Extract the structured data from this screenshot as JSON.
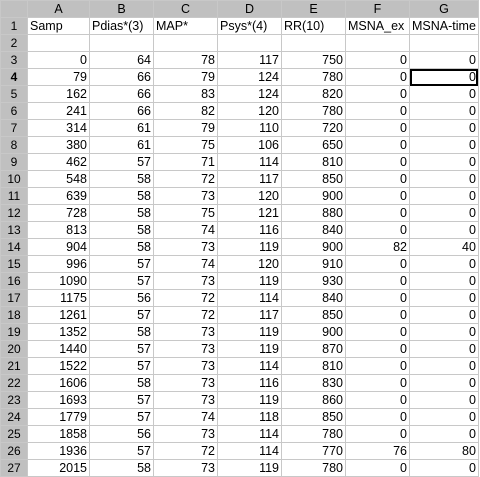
{
  "sheet": {
    "columns": [
      "A",
      "B",
      "C",
      "D",
      "E",
      "F",
      "G"
    ],
    "header_row": {
      "number": "1",
      "cells": [
        "Samp",
        "Pdias*(3)",
        "MAP*",
        "Psys*(4)",
        "RR(10)",
        "MSNA_ex",
        "MSNA-time"
      ]
    },
    "active_row": "4",
    "selected_cell": {
      "row": "4",
      "column": "G"
    },
    "rows": [
      {
        "n": "2",
        "cells": [
          "",
          "",
          "",
          "",
          "",
          "",
          ""
        ]
      },
      {
        "n": "3",
        "cells": [
          "0",
          "64",
          "78",
          "117",
          "750",
          "0",
          "0"
        ]
      },
      {
        "n": "4",
        "cells": [
          "79",
          "66",
          "79",
          "124",
          "780",
          "0",
          "0"
        ]
      },
      {
        "n": "5",
        "cells": [
          "162",
          "66",
          "83",
          "124",
          "820",
          "0",
          "0"
        ]
      },
      {
        "n": "6",
        "cells": [
          "241",
          "66",
          "82",
          "120",
          "780",
          "0",
          "0"
        ]
      },
      {
        "n": "7",
        "cells": [
          "314",
          "61",
          "79",
          "110",
          "720",
          "0",
          "0"
        ]
      },
      {
        "n": "8",
        "cells": [
          "380",
          "61",
          "75",
          "106",
          "650",
          "0",
          "0"
        ]
      },
      {
        "n": "9",
        "cells": [
          "462",
          "57",
          "71",
          "114",
          "810",
          "0",
          "0"
        ]
      },
      {
        "n": "10",
        "cells": [
          "548",
          "58",
          "72",
          "117",
          "850",
          "0",
          "0"
        ]
      },
      {
        "n": "11",
        "cells": [
          "639",
          "58",
          "73",
          "120",
          "900",
          "0",
          "0"
        ]
      },
      {
        "n": "12",
        "cells": [
          "728",
          "58",
          "75",
          "121",
          "880",
          "0",
          "0"
        ]
      },
      {
        "n": "13",
        "cells": [
          "813",
          "58",
          "74",
          "116",
          "840",
          "0",
          "0"
        ]
      },
      {
        "n": "14",
        "cells": [
          "904",
          "58",
          "73",
          "119",
          "900",
          "82",
          "40"
        ]
      },
      {
        "n": "15",
        "cells": [
          "996",
          "57",
          "74",
          "120",
          "910",
          "0",
          "0"
        ]
      },
      {
        "n": "16",
        "cells": [
          "1090",
          "57",
          "73",
          "119",
          "930",
          "0",
          "0"
        ]
      },
      {
        "n": "17",
        "cells": [
          "1175",
          "56",
          "72",
          "114",
          "840",
          "0",
          "0"
        ]
      },
      {
        "n": "18",
        "cells": [
          "1261",
          "57",
          "72",
          "117",
          "850",
          "0",
          "0"
        ]
      },
      {
        "n": "19",
        "cells": [
          "1352",
          "58",
          "73",
          "119",
          "900",
          "0",
          "0"
        ]
      },
      {
        "n": "20",
        "cells": [
          "1440",
          "57",
          "73",
          "119",
          "870",
          "0",
          "0"
        ]
      },
      {
        "n": "21",
        "cells": [
          "1522",
          "57",
          "73",
          "114",
          "810",
          "0",
          "0"
        ]
      },
      {
        "n": "22",
        "cells": [
          "1606",
          "58",
          "73",
          "116",
          "830",
          "0",
          "0"
        ]
      },
      {
        "n": "23",
        "cells": [
          "1693",
          "57",
          "73",
          "119",
          "860",
          "0",
          "0"
        ]
      },
      {
        "n": "24",
        "cells": [
          "1779",
          "57",
          "74",
          "118",
          "850",
          "0",
          "0"
        ]
      },
      {
        "n": "25",
        "cells": [
          "1858",
          "56",
          "73",
          "114",
          "780",
          "0",
          "0"
        ]
      },
      {
        "n": "26",
        "cells": [
          "1936",
          "57",
          "72",
          "114",
          "770",
          "76",
          "80"
        ]
      },
      {
        "n": "27",
        "cells": [
          "2015",
          "58",
          "73",
          "119",
          "780",
          "0",
          "0"
        ]
      }
    ]
  },
  "colors": {
    "header_bg": "#c0c0c0",
    "grid_line": "#c8c8c8",
    "cell_bg": "#ffffff"
  }
}
